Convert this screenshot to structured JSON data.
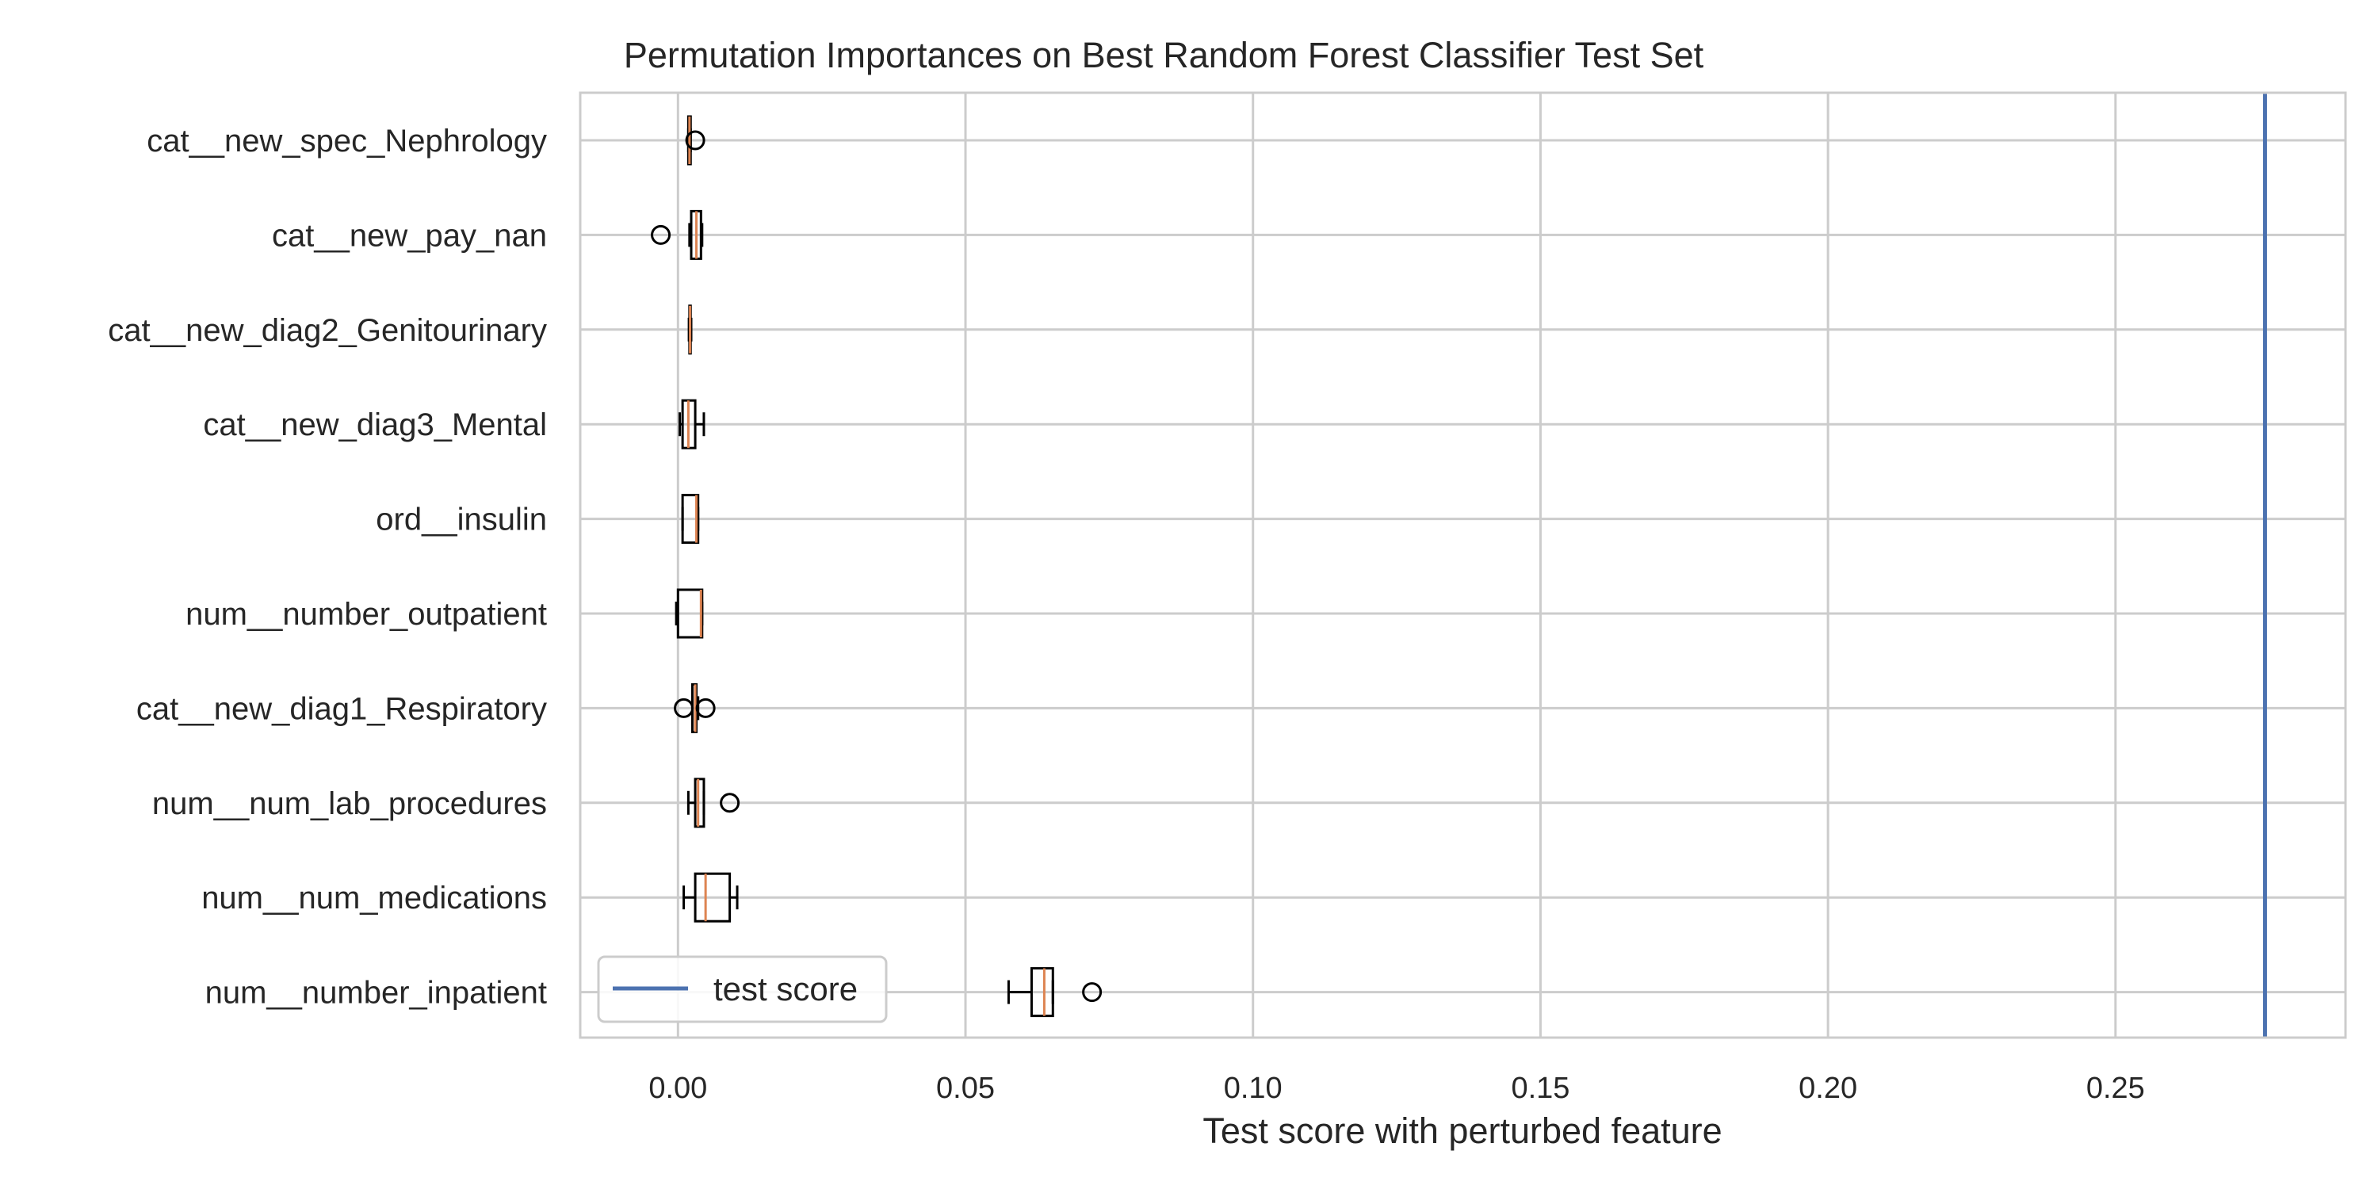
{
  "chart_data": {
    "type": "boxplot",
    "orientation": "horizontal",
    "title": "Permutation Importances on Best Random Forest Classifier Test Set",
    "xlabel": "Test score with perturbed feature",
    "ylabel": "",
    "xlim": [
      -0.017,
      0.29
    ],
    "x_ticks": [
      {
        "value": 0.0,
        "label": "0.00"
      },
      {
        "value": 0.05,
        "label": "0.05"
      },
      {
        "value": 0.1,
        "label": "0.10"
      },
      {
        "value": 0.15,
        "label": "0.15"
      },
      {
        "value": 0.2,
        "label": "0.20"
      },
      {
        "value": 0.25,
        "label": "0.25"
      }
    ],
    "grid": true,
    "legend": {
      "entries": [
        {
          "label": "test score",
          "color": "#4c72b0"
        }
      ],
      "location": "lower-left"
    },
    "reference_line": {
      "name": "test score",
      "x": 0.276,
      "color": "#4c72b0"
    },
    "box_color": "#000000",
    "median_color": "#dd8452",
    "features": [
      {
        "name": "cat__new_spec_Nephrology",
        "whisker_low": 0.0018,
        "q1": 0.0018,
        "median": 0.002,
        "q3": 0.0022,
        "whisker_high": 0.0022,
        "outliers": [
          0.003
        ]
      },
      {
        "name": "cat__new_pay_nan",
        "whisker_low": 0.002,
        "q1": 0.0023,
        "median": 0.0032,
        "q3": 0.004,
        "whisker_high": 0.0042,
        "outliers": [
          -0.003
        ]
      },
      {
        "name": "cat__new_diag2_Genitourinary",
        "whisker_low": 0.0019,
        "q1": 0.002,
        "median": 0.0021,
        "q3": 0.0022,
        "whisker_high": 0.0023,
        "outliers": []
      },
      {
        "name": "cat__new_diag3_Mental",
        "whisker_low": 0.0003,
        "q1": 0.0008,
        "median": 0.0018,
        "q3": 0.003,
        "whisker_high": 0.0045,
        "outliers": []
      },
      {
        "name": "ord__insulin",
        "whisker_low": 0.0008,
        "q1": 0.0008,
        "median": 0.0032,
        "q3": 0.0035,
        "whisker_high": 0.0035,
        "outliers": []
      },
      {
        "name": "num__number_outpatient",
        "whisker_low": -0.0003,
        "q1": 0.0,
        "median": 0.004,
        "q3": 0.0042,
        "whisker_high": 0.0042,
        "outliers": []
      },
      {
        "name": "cat__new_diag1_Respiratory",
        "whisker_low": 0.0025,
        "q1": 0.0025,
        "median": 0.003,
        "q3": 0.0032,
        "whisker_high": 0.0035,
        "outliers": [
          0.001,
          0.0048
        ]
      },
      {
        "name": "num__num_lab_procedures",
        "whisker_low": 0.0018,
        "q1": 0.003,
        "median": 0.0035,
        "q3": 0.0045,
        "whisker_high": 0.0045,
        "outliers": [
          0.009
        ]
      },
      {
        "name": "num__num_medications",
        "whisker_low": 0.001,
        "q1": 0.003,
        "median": 0.0048,
        "q3": 0.009,
        "whisker_high": 0.0103,
        "outliers": []
      },
      {
        "name": "num__number_inpatient",
        "whisker_low": 0.0575,
        "q1": 0.0615,
        "median": 0.0637,
        "q3": 0.0652,
        "whisker_high": 0.0652,
        "outliers": [
          0.072
        ]
      }
    ]
  }
}
